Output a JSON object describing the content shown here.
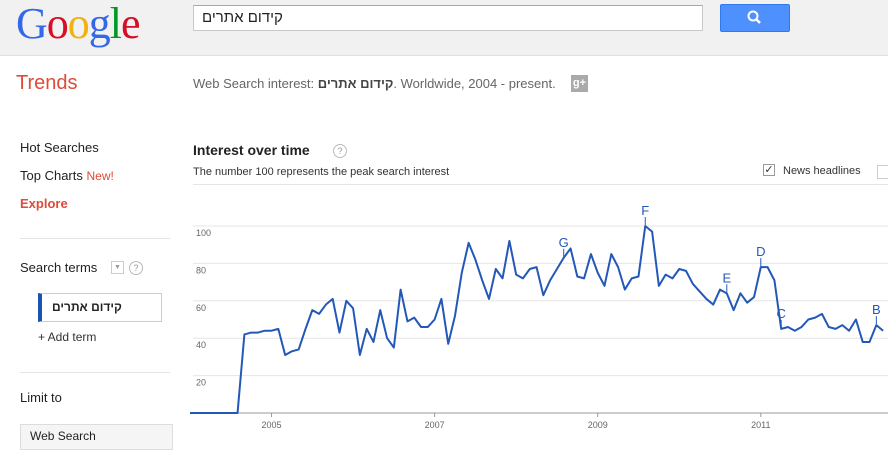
{
  "header": {
    "logo": "Google",
    "query": "קידום אתרים"
  },
  "nav": {
    "product": "Trends",
    "summary_prefix": "Web Search interest: ",
    "summary_term": "קידום אתרים",
    "summary_suffix": ". Worldwide, 2004 - present."
  },
  "sidebar": {
    "items": [
      "Hot Searches",
      "Top Charts",
      "Explore"
    ],
    "badge": "New!",
    "search_terms_label": "Search terms",
    "terms": [
      "קידום אתרים"
    ],
    "add_term": "+ Add term",
    "limit_label": "Limit to",
    "limit_value": "Web Search"
  },
  "chart_data": {
    "type": "line",
    "title": "Interest over time",
    "subtitle": "The number 100 represents the peak search interest",
    "news_headlines": "News headlines",
    "x": [
      2004,
      2004.083,
      2004.167,
      2004.25,
      2004.333,
      2004.417,
      2004.5,
      2004.583,
      2004.667,
      2004.75,
      2004.833,
      2004.917,
      2005,
      2005.083,
      2005.167,
      2005.25,
      2005.333,
      2005.417,
      2005.5,
      2005.583,
      2005.667,
      2005.75,
      2005.833,
      2005.917,
      2006,
      2006.083,
      2006.167,
      2006.25,
      2006.333,
      2006.417,
      2006.5,
      2006.583,
      2006.667,
      2006.75,
      2006.833,
      2006.917,
      2007,
      2007.083,
      2007.167,
      2007.25,
      2007.333,
      2007.417,
      2007.5,
      2007.583,
      2007.667,
      2007.75,
      2007.833,
      2007.917,
      2008,
      2008.083,
      2008.167,
      2008.25,
      2008.333,
      2008.417,
      2008.5,
      2008.583,
      2008.667,
      2008.75,
      2008.833,
      2008.917,
      2009,
      2009.083,
      2009.167,
      2009.25,
      2009.333,
      2009.417,
      2009.5,
      2009.583,
      2009.667,
      2009.75,
      2009.833,
      2009.917,
      2010,
      2010.083,
      2010.167,
      2010.25,
      2010.333,
      2010.417,
      2010.5,
      2010.583,
      2010.667,
      2010.75,
      2010.833,
      2010.917,
      2011,
      2011.083,
      2011.167,
      2011.25,
      2011.333,
      2011.417,
      2011.5,
      2011.583,
      2011.667,
      2011.75,
      2011.833,
      2011.917,
      2012,
      2012.083,
      2012.167,
      2012.25,
      2012.333,
      2012.417,
      2012.5
    ],
    "values": [
      0,
      0,
      0,
      0,
      0,
      0,
      0,
      0,
      42,
      43,
      43,
      44,
      44,
      45,
      31,
      33,
      34,
      45,
      55,
      53,
      58,
      61,
      43,
      60,
      56,
      31,
      45,
      38,
      55,
      40,
      35,
      66,
      49,
      51,
      46,
      46,
      50,
      61,
      37,
      52,
      75,
      91,
      82,
      71,
      61,
      77,
      72,
      92,
      74,
      72,
      77,
      78,
      63,
      71,
      77,
      83,
      88,
      73,
      72,
      85,
      75,
      68,
      85,
      78,
      66,
      72,
      73,
      100,
      97,
      68,
      74,
      72,
      77,
      76,
      69,
      65,
      61,
      58,
      66,
      64,
      55,
      64,
      59,
      62,
      78,
      78,
      71,
      45,
      46,
      44,
      46,
      50,
      51,
      53,
      46,
      45,
      47,
      44,
      50,
      38,
      38,
      47,
      44
    ],
    "color": "#2458b8",
    "xlim": [
      2004,
      2012.56
    ],
    "xticks": [
      2005,
      2007,
      2009,
      2011
    ],
    "ylim": [
      0,
      100
    ],
    "yticks": [
      20,
      40,
      60,
      80,
      100
    ],
    "grid": true,
    "annotations": [
      {
        "label": "G",
        "x": 2008.583
      },
      {
        "label": "F",
        "x": 2009.583
      },
      {
        "label": "E",
        "x": 2010.583
      },
      {
        "label": "D",
        "x": 2011
      },
      {
        "label": "C",
        "x": 2011.25
      },
      {
        "label": "B",
        "x": 2012.417
      }
    ]
  }
}
